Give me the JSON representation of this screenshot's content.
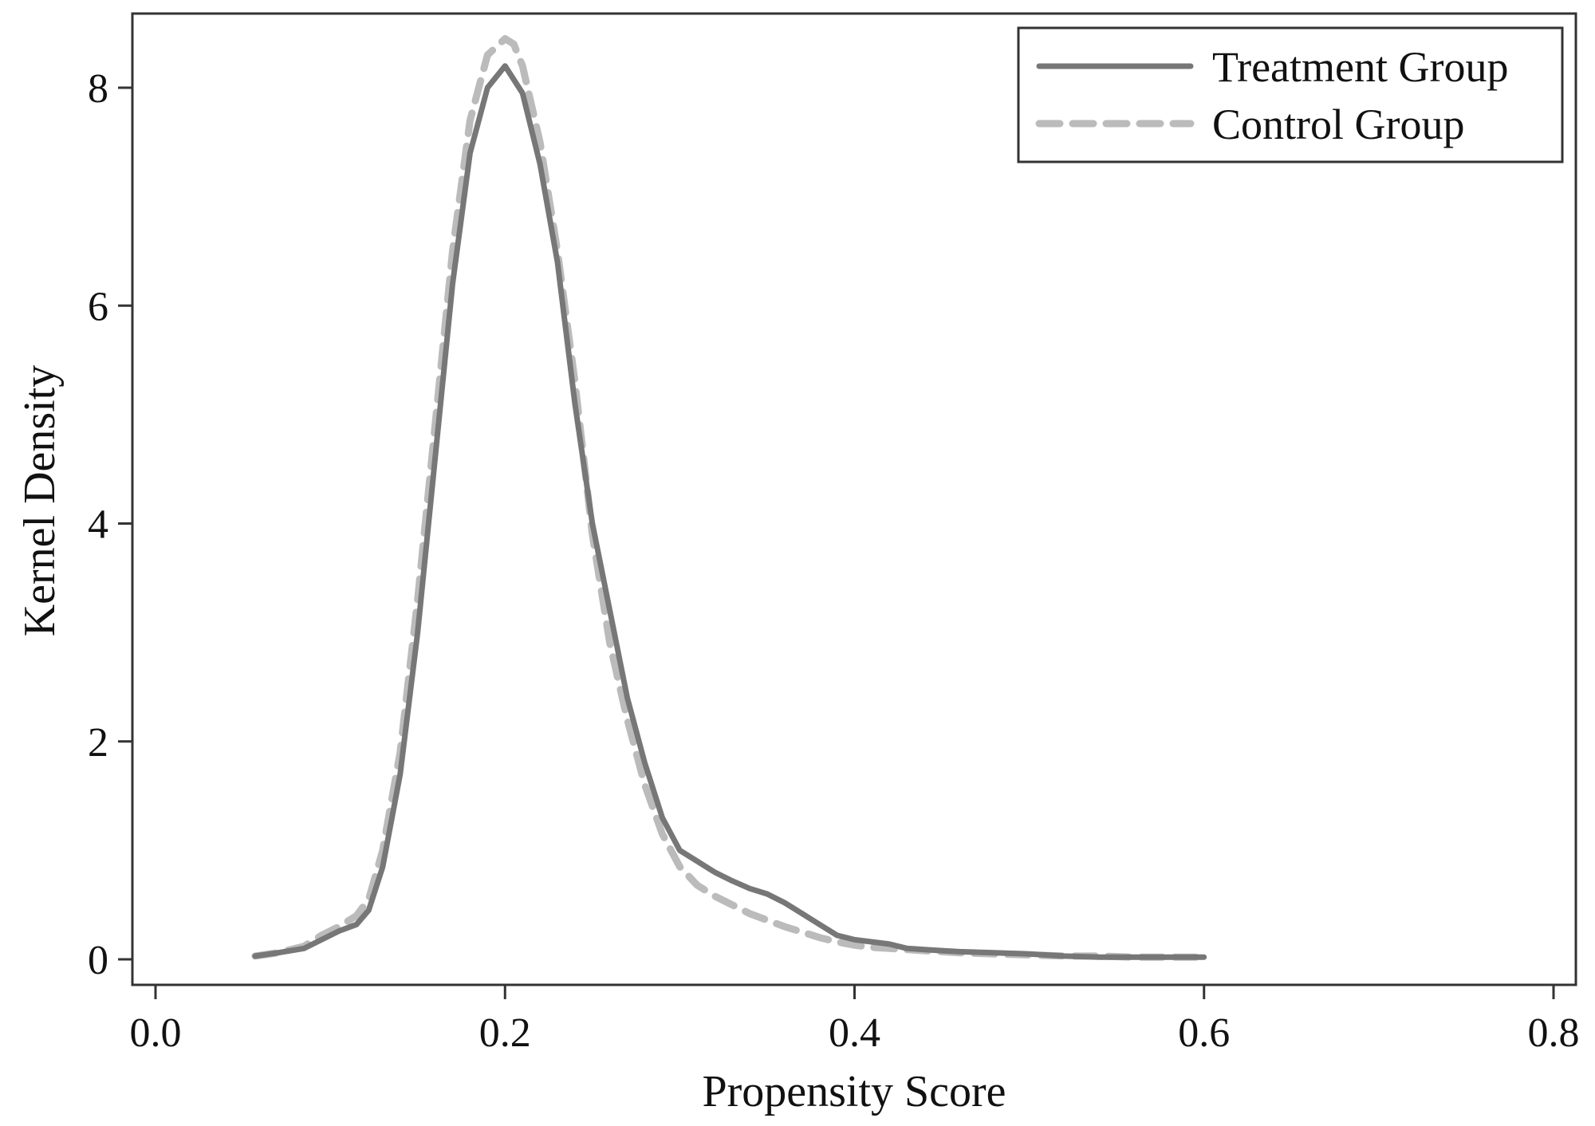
{
  "chart_data": {
    "type": "line",
    "xlabel": "Propensity Score",
    "ylabel": "Kernel Density",
    "xlim": [
      0.0,
      0.8
    ],
    "ylim": [
      0,
      8.5
    ],
    "xticks": [
      "0.0",
      "0.2",
      "0.4",
      "0.6",
      "0.8"
    ],
    "xtick_values": [
      0.0,
      0.2,
      0.4,
      0.6,
      0.8
    ],
    "yticks": [
      "0",
      "2",
      "4",
      "6",
      "8"
    ],
    "ytick_values": [
      0,
      2,
      4,
      6,
      8
    ],
    "grid": false,
    "legend_position": "top-right",
    "series": [
      {
        "name": "Treatment Group",
        "style": "solid",
        "color": "#777777",
        "x": [
          0.057,
          0.07,
          0.085,
          0.095,
          0.105,
          0.115,
          0.122,
          0.13,
          0.14,
          0.15,
          0.16,
          0.17,
          0.18,
          0.19,
          0.2,
          0.21,
          0.22,
          0.23,
          0.24,
          0.25,
          0.26,
          0.27,
          0.28,
          0.29,
          0.3,
          0.31,
          0.32,
          0.33,
          0.34,
          0.35,
          0.36,
          0.37,
          0.38,
          0.39,
          0.4,
          0.41,
          0.42,
          0.43,
          0.44,
          0.45,
          0.46,
          0.48,
          0.5,
          0.52,
          0.54,
          0.56,
          0.58,
          0.6
        ],
        "y": [
          0.03,
          0.06,
          0.1,
          0.18,
          0.26,
          0.32,
          0.45,
          0.85,
          1.7,
          3.0,
          4.6,
          6.2,
          7.4,
          8.0,
          8.2,
          7.95,
          7.3,
          6.4,
          5.1,
          4.0,
          3.2,
          2.4,
          1.8,
          1.3,
          1.0,
          0.9,
          0.8,
          0.72,
          0.65,
          0.6,
          0.52,
          0.42,
          0.32,
          0.22,
          0.18,
          0.16,
          0.14,
          0.1,
          0.09,
          0.08,
          0.07,
          0.06,
          0.05,
          0.03,
          0.02,
          0.02,
          0.02,
          0.02
        ]
      },
      {
        "name": "Control Group",
        "style": "dashed",
        "color": "#bbbbbb",
        "x": [
          0.057,
          0.07,
          0.085,
          0.095,
          0.105,
          0.115,
          0.122,
          0.13,
          0.14,
          0.15,
          0.16,
          0.17,
          0.18,
          0.19,
          0.2,
          0.205,
          0.21,
          0.22,
          0.23,
          0.24,
          0.25,
          0.26,
          0.27,
          0.28,
          0.29,
          0.3,
          0.31,
          0.32,
          0.33,
          0.34,
          0.35,
          0.36,
          0.37,
          0.38,
          0.39,
          0.4,
          0.41,
          0.42,
          0.43,
          0.44,
          0.45,
          0.46,
          0.48,
          0.5,
          0.52,
          0.54,
          0.56,
          0.58,
          0.6
        ],
        "y": [
          0.03,
          0.06,
          0.12,
          0.22,
          0.3,
          0.4,
          0.55,
          1.0,
          1.9,
          3.3,
          4.9,
          6.5,
          7.7,
          8.3,
          8.45,
          8.4,
          8.2,
          7.5,
          6.5,
          5.3,
          3.9,
          2.9,
          2.2,
          1.6,
          1.15,
          0.85,
          0.68,
          0.58,
          0.5,
          0.42,
          0.36,
          0.3,
          0.25,
          0.2,
          0.16,
          0.13,
          0.11,
          0.1,
          0.09,
          0.08,
          0.07,
          0.06,
          0.05,
          0.04,
          0.03,
          0.03,
          0.02,
          0.02,
          0.02
        ]
      }
    ]
  }
}
